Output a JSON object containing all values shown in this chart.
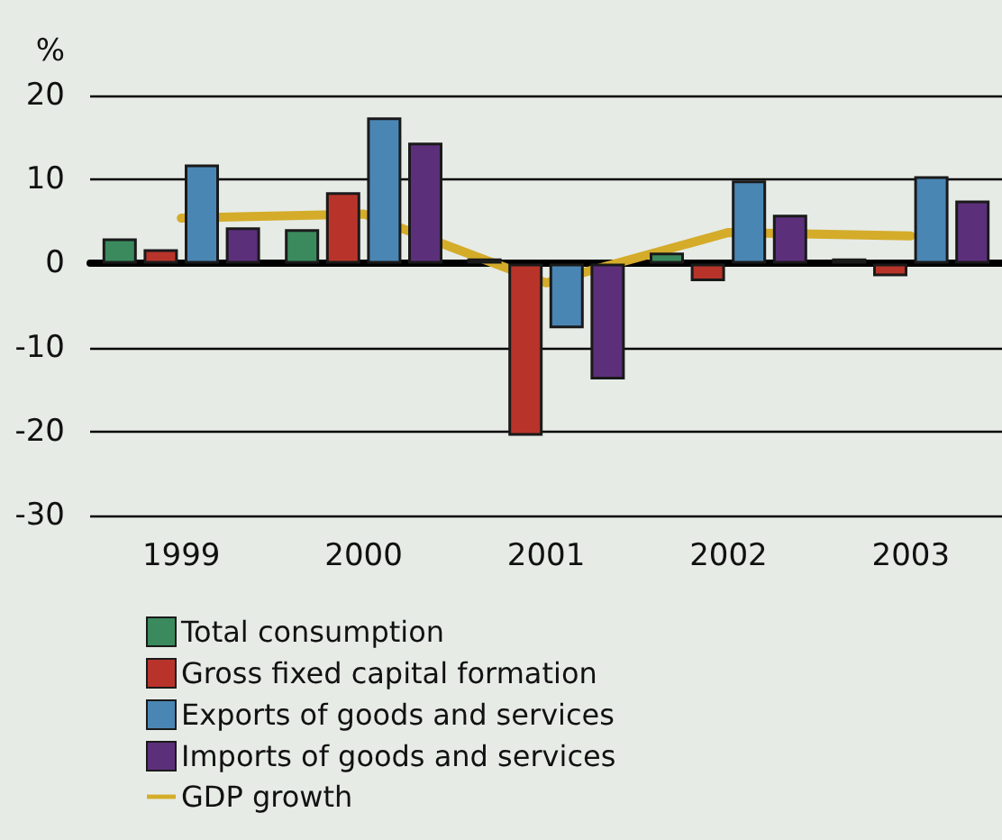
{
  "chart_data": {
    "type": "bar",
    "ylabel": "%",
    "categories": [
      "1999",
      "2000",
      "2001",
      "2002",
      "2003"
    ],
    "series": [
      {
        "name": "Total consumption",
        "color": "#3a8a5e",
        "values": [
          3,
          4.1,
          0.6,
          1.3,
          0.6
        ]
      },
      {
        "name": "Gross fixed capital formation",
        "color": "#b8342a",
        "values": [
          1.7,
          8.5,
          -20.5,
          -2.1,
          -1.5
        ]
      },
      {
        "name": "Exports of goods and services",
        "color": "#4a86b4",
        "values": [
          11.8,
          17.4,
          -7.7,
          9.9,
          10.4
        ]
      },
      {
        "name": "Imports of goods and services",
        "color": "#5c2f7a",
        "values": [
          4.3,
          14.4,
          -13.8,
          5.8,
          7.5
        ]
      },
      {
        "name": "GDP growth",
        "type": "line",
        "color": "#d4ac2a",
        "values": [
          5.4,
          5.9,
          -2.3,
          3.7,
          3.3
        ]
      }
    ],
    "ylim": [
      -30,
      20
    ],
    "yticks": [
      -30,
      -20,
      -10,
      0,
      10,
      20
    ],
    "grid": "y",
    "legend": "bottom left",
    "marker": "none"
  }
}
